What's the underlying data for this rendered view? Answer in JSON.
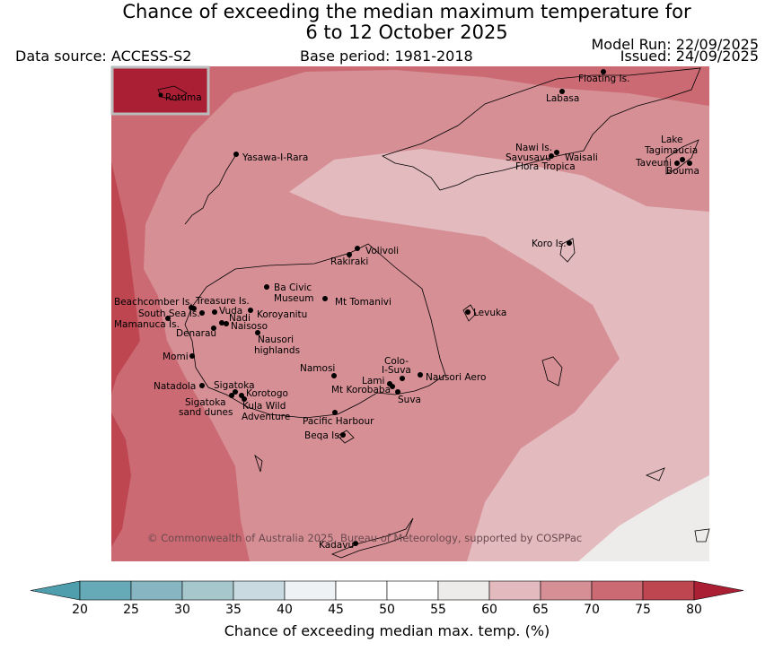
{
  "title": {
    "line1": "Chance of exceeding the median maximum temperature for",
    "line2": "6 to 12 October 2025"
  },
  "meta": {
    "data_source": "Data source: ACCESS-S2",
    "base_period": "Base period: 1981-2018",
    "model_run": "Model Run: 22/09/2025",
    "issued": "Issued: 24/09/2025"
  },
  "inset": {
    "label": "Rotuma"
  },
  "copyright": "© Commonwealth of Australia 2025, Bureau of Meteorology, supported by COSPPac",
  "places": [
    "Floating Is.",
    "Labasa",
    "Nawi Is.",
    "Savusavu",
    "Waisali",
    "Flora Tropica",
    "Lake",
    "Tagimaucia",
    "Taveuni",
    "Bouma",
    "Yasawa-I-Rara",
    "Koro Is.",
    "Volivoli",
    "Rakiraki",
    "Ba Civic",
    "Museum",
    "Mt Tomanivi",
    "Beachcomber Is.",
    "Treasure Is.",
    "South Sea Is.",
    "Vuda",
    "Koroyanitu",
    "Mamanuca Is.",
    "Nadi",
    "Naisoso",
    "Denarau",
    "Nausori",
    "highlands",
    "Levuka",
    "Momi",
    "Colo-",
    "I-Suva",
    "Namosi",
    "Lami",
    "Nausori Aero",
    "Natadola",
    "Sigatoka",
    "Mt Korobaba",
    "Korotogo",
    "Suva",
    "Sigatoka",
    "sand dunes",
    "Kula Wild",
    "Adventure",
    "Pacific Harbour",
    "Beqa Is.",
    "Kadavu"
  ],
  "colorbar": {
    "label": "Chance of exceeding median max. temp. (%)",
    "ticks": [
      "20",
      "25",
      "30",
      "35",
      "40",
      "45",
      "50",
      "55",
      "60",
      "65",
      "70",
      "75",
      "80"
    ],
    "colors": [
      "#4e9ead",
      "#66aab7",
      "#87b6c2",
      "#a6c8cd",
      "#c9dbe0",
      "#eef2f5",
      "#ffffff",
      "#ffffff",
      "#eeecea",
      "#e3babe",
      "#d58f95",
      "#cb6a73",
      "#bd4651",
      "#ab1f35"
    ]
  }
}
